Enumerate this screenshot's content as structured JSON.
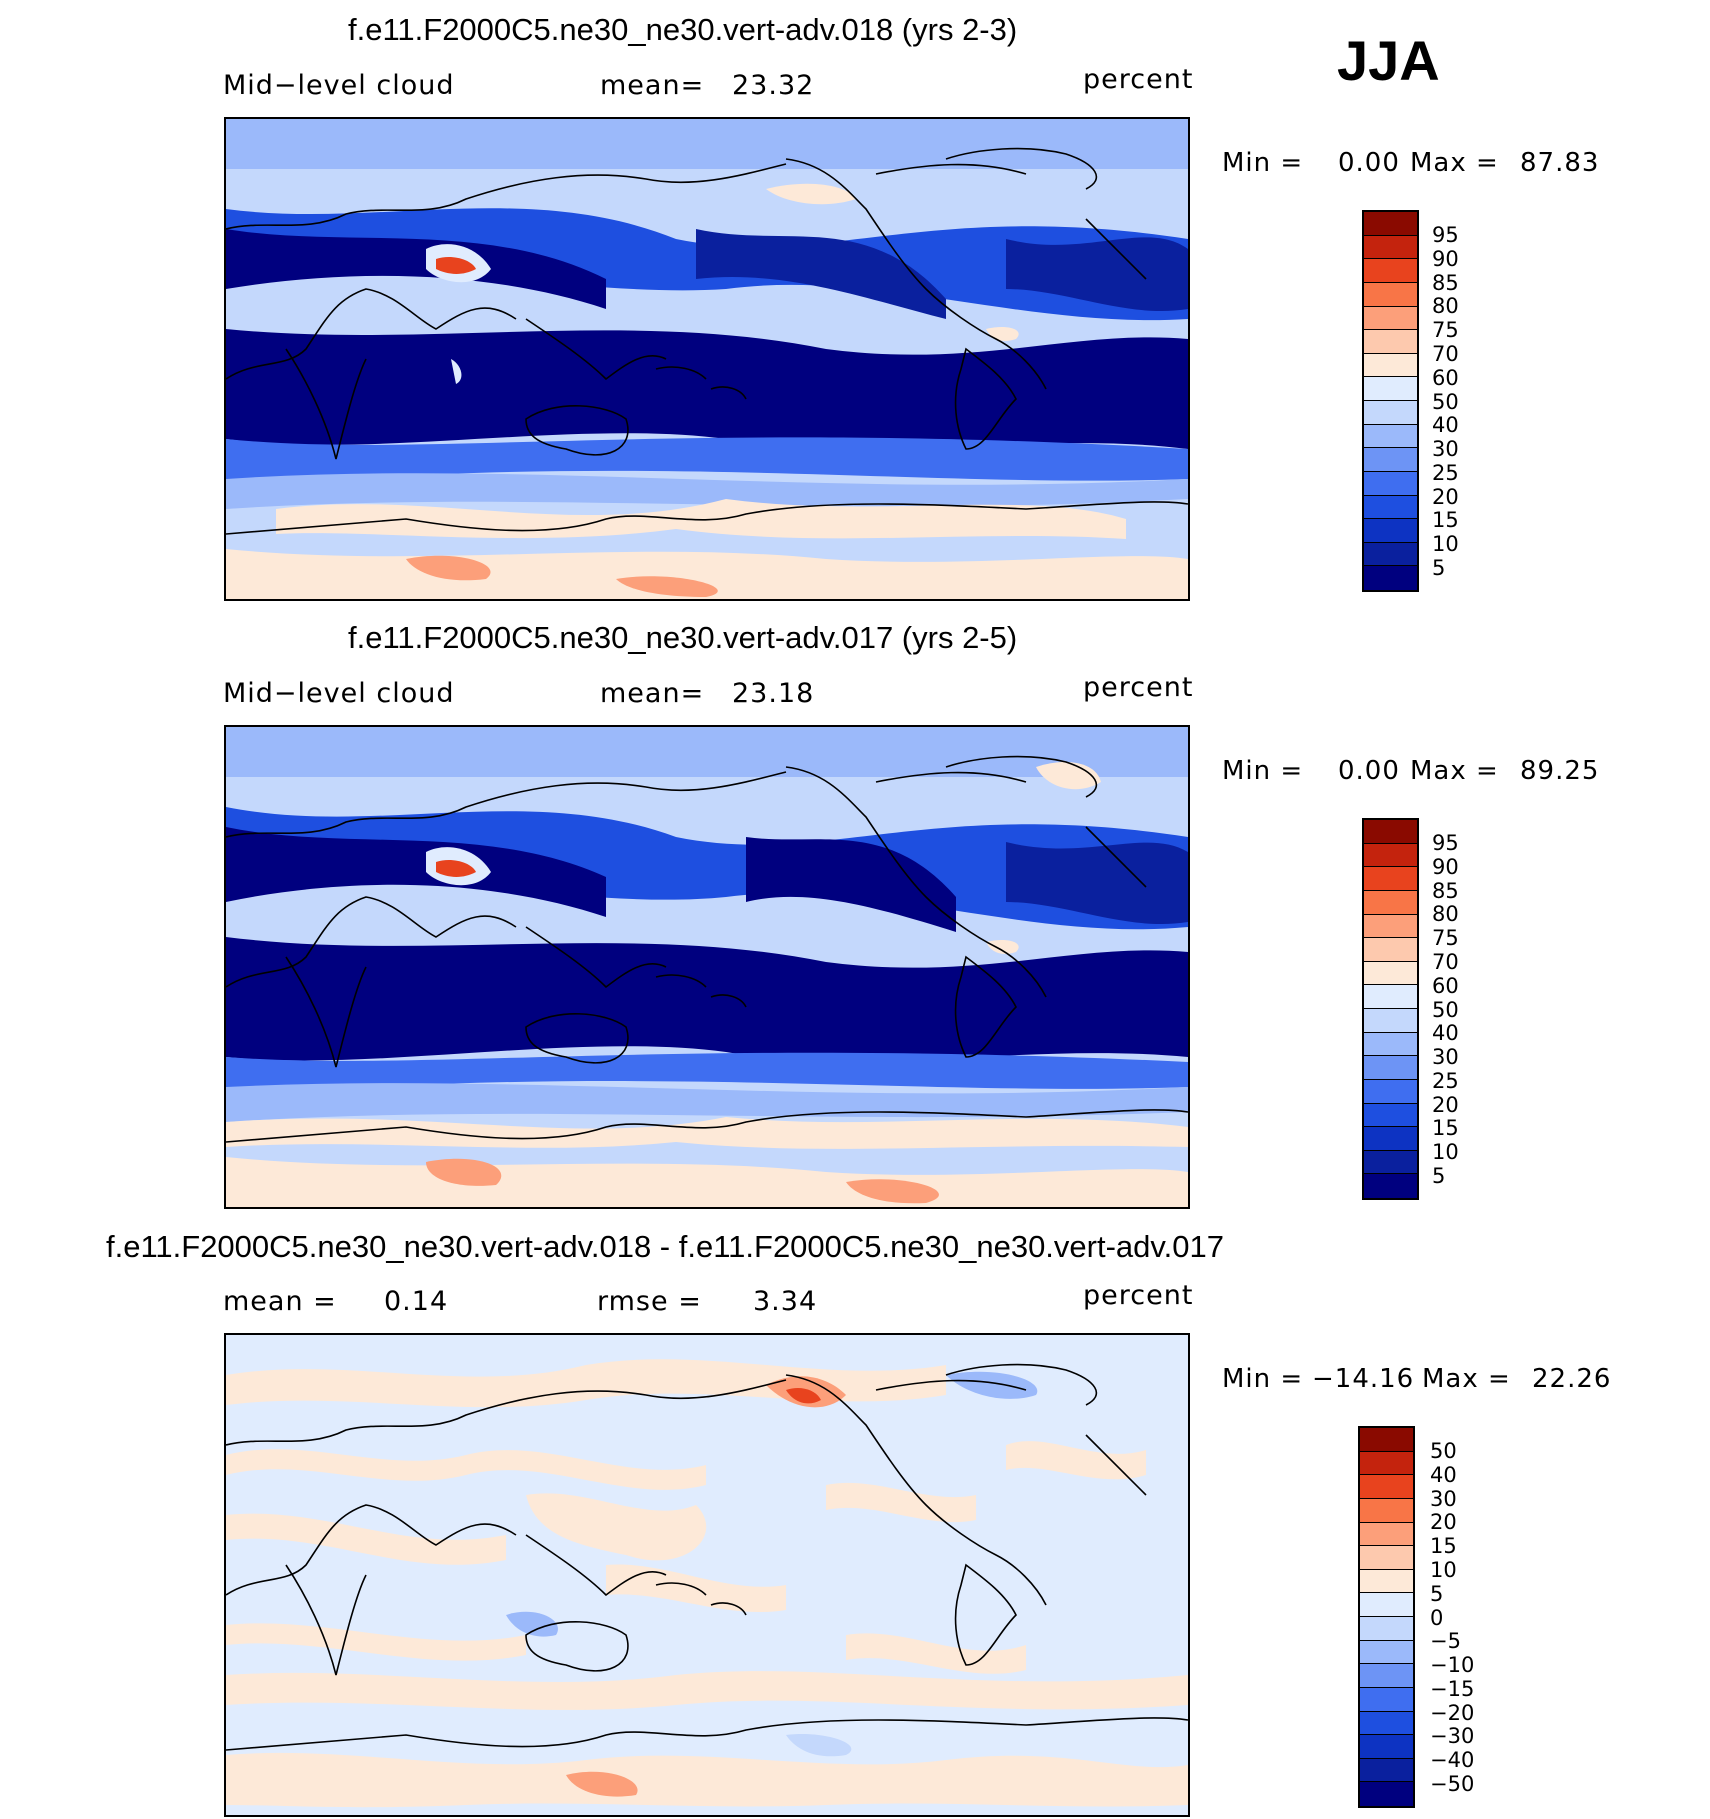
{
  "season": "JJA",
  "colors": {
    "abs_scale": [
      "#00007f",
      "#0a209e",
      "#0d33c2",
      "#1e4fe0",
      "#3f6ef0",
      "#6d94f5",
      "#9bb9fa",
      "#c4d8fc",
      "#e0ecfe",
      "#fde9d8",
      "#fdc9ae",
      "#fc9f7a",
      "#f87547",
      "#e8431e",
      "#c4230d",
      "#8a0a00"
    ],
    "diff_scale": [
      "#00007f",
      "#0a209e",
      "#0d33c2",
      "#1e4fe0",
      "#3f6ef0",
      "#6d94f5",
      "#9bb9fa",
      "#c4d8fc",
      "#e0ecfe",
      "#fde9d8",
      "#fdc9ae",
      "#fc9f7a",
      "#f87547",
      "#e8431e",
      "#c4230d",
      "#8a0a00"
    ]
  },
  "chart_data": [
    {
      "type": "heatmap",
      "title": "f.e11.F2000C5.ne30_ne30.vert-adv.018 (yrs 2-3)",
      "variable": "Mid−level cloud",
      "mean_label": "mean=",
      "mean": "23.32",
      "units": "percent",
      "min_label": "Min =",
      "min": "0.00",
      "max_label": "Max =",
      "max": "87.83",
      "levels": [
        "95",
        "90",
        "85",
        "80",
        "75",
        "70",
        "60",
        "50",
        "40",
        "30",
        "25",
        "20",
        "15",
        "10",
        "5"
      ]
    },
    {
      "type": "heatmap",
      "title": "f.e11.F2000C5.ne30_ne30.vert-adv.017 (yrs 2-5)",
      "variable": "Mid−level cloud",
      "mean_label": "mean=",
      "mean": "23.18",
      "units": "percent",
      "min_label": "Min =",
      "min": "0.00",
      "max_label": "Max =",
      "max": "89.25",
      "levels": [
        "95",
        "90",
        "85",
        "80",
        "75",
        "70",
        "60",
        "50",
        "40",
        "30",
        "25",
        "20",
        "15",
        "10",
        "5"
      ]
    },
    {
      "type": "heatmap",
      "title": "f.e11.F2000C5.ne30_ne30.vert-adv.018 - f.e11.F2000C5.ne30_ne30.vert-adv.017",
      "mean_label": "mean =",
      "mean": "0.14",
      "rmse_label": "rmse =",
      "rmse": "3.34",
      "units": "percent",
      "min_label": "Min =",
      "min": "−14.16",
      "max_label": "Max =",
      "max": "22.26",
      "levels": [
        "50",
        "40",
        "30",
        "20",
        "15",
        "10",
        "5",
        "0",
        "−5",
        "−10",
        "−15",
        "−20",
        "−30",
        "−40",
        "−50"
      ]
    }
  ]
}
